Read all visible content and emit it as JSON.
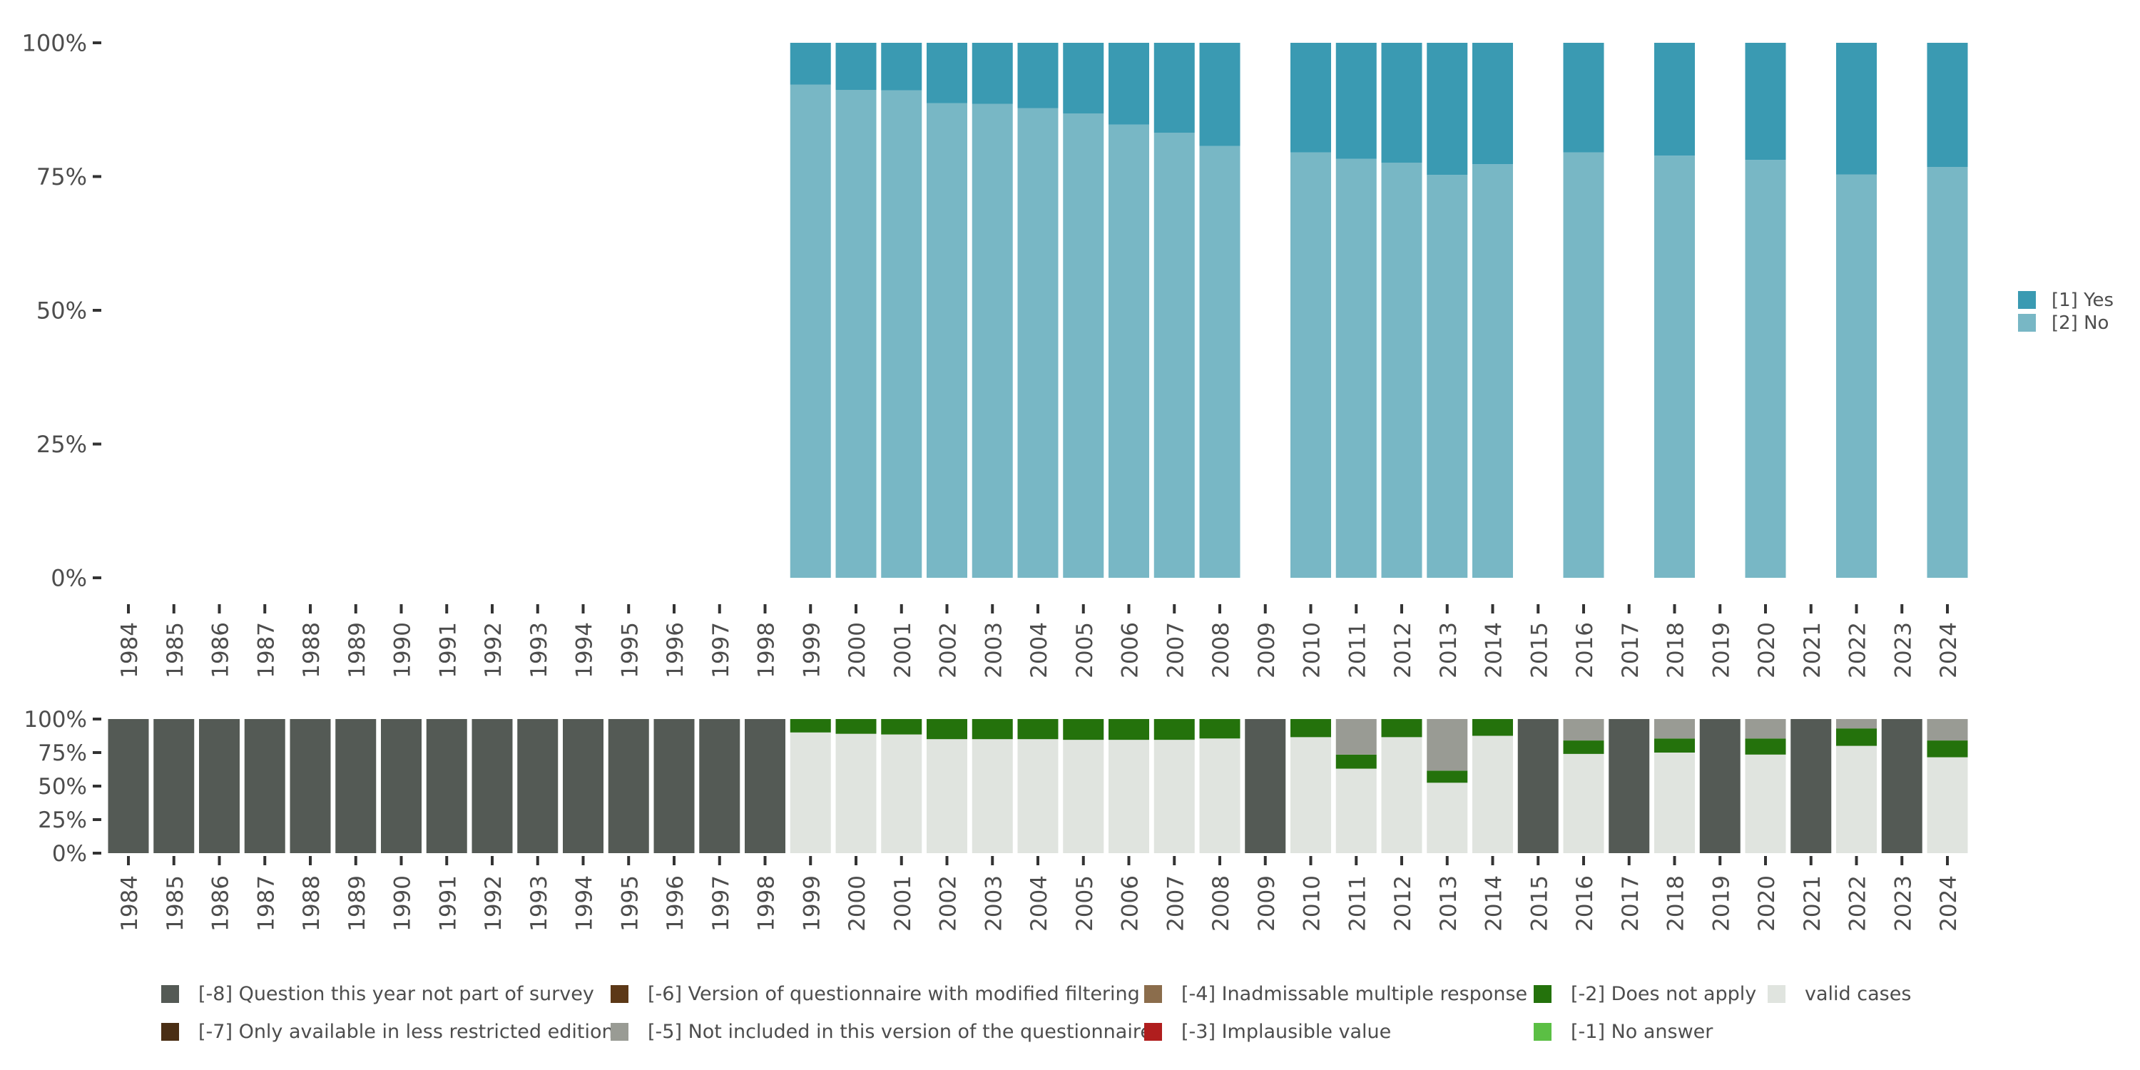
{
  "chart_data": [
    {
      "type": "bar",
      "stacked": true,
      "categories": [
        "1984",
        "1985",
        "1986",
        "1987",
        "1988",
        "1989",
        "1990",
        "1991",
        "1992",
        "1993",
        "1994",
        "1995",
        "1996",
        "1997",
        "1998",
        "1999",
        "2000",
        "2001",
        "2002",
        "2003",
        "2004",
        "2005",
        "2006",
        "2007",
        "2008",
        "2009",
        "2010",
        "2011",
        "2012",
        "2013",
        "2014",
        "2015",
        "2016",
        "2017",
        "2018",
        "2019",
        "2020",
        "2021",
        "2022",
        "2023",
        "2024"
      ],
      "y_ticks": [
        "0%",
        "25%",
        "50%",
        "75%",
        "100%"
      ],
      "ylim": [
        0,
        100
      ],
      "legend_position": "right",
      "series": [
        {
          "name": "[2] No",
          "color": "#78b7c5",
          "values": [
            null,
            null,
            null,
            null,
            null,
            null,
            null,
            null,
            null,
            null,
            null,
            null,
            null,
            null,
            null,
            92.2,
            91.2,
            91.1,
            88.7,
            88.6,
            87.8,
            86.8,
            84.7,
            83.2,
            80.7,
            null,
            79.5,
            78.3,
            77.6,
            75.3,
            77.3,
            null,
            79.5,
            null,
            78.9,
            null,
            78.1,
            null,
            75.4,
            null,
            76.8
          ]
        },
        {
          "name": "[1] Yes",
          "color": "#3a9ab2",
          "values": [
            null,
            null,
            null,
            null,
            null,
            null,
            null,
            null,
            null,
            null,
            null,
            null,
            null,
            null,
            null,
            7.8,
            8.8,
            8.9,
            11.3,
            11.4,
            12.2,
            13.2,
            15.3,
            16.8,
            19.3,
            null,
            20.5,
            21.7,
            22.4,
            24.7,
            22.7,
            null,
            20.5,
            null,
            21.1,
            null,
            21.9,
            null,
            24.6,
            null,
            23.2
          ]
        }
      ]
    },
    {
      "type": "bar",
      "stacked": true,
      "categories": [
        "1984",
        "1985",
        "1986",
        "1987",
        "1988",
        "1989",
        "1990",
        "1991",
        "1992",
        "1993",
        "1994",
        "1995",
        "1996",
        "1997",
        "1998",
        "1999",
        "2000",
        "2001",
        "2002",
        "2003",
        "2004",
        "2005",
        "2006",
        "2007",
        "2008",
        "2009",
        "2010",
        "2011",
        "2012",
        "2013",
        "2014",
        "2015",
        "2016",
        "2017",
        "2018",
        "2019",
        "2020",
        "2021",
        "2022",
        "2023",
        "2024"
      ],
      "y_ticks": [
        "0%",
        "25%",
        "50%",
        "75%",
        "100%"
      ],
      "ylim": [
        0,
        100
      ],
      "legend_position": "bottom",
      "series": [
        {
          "name": "valid cases",
          "color": "#e0e4df",
          "values": [
            0,
            0,
            0,
            0,
            0,
            0,
            0,
            0,
            0,
            0,
            0,
            0,
            0,
            0,
            0,
            90,
            89,
            88.5,
            85,
            85,
            85,
            84.5,
            84.5,
            84.5,
            85.5,
            0,
            86.5,
            63,
            86.5,
            52.5,
            87.5,
            0,
            74,
            0,
            75,
            0,
            73.5,
            0,
            80,
            0,
            71.5
          ]
        },
        {
          "name": "[-2] Does not apply",
          "color": "#24720c",
          "values": [
            0,
            0,
            0,
            0,
            0,
            0,
            0,
            0,
            0,
            0,
            0,
            0,
            0,
            0,
            0,
            10,
            11,
            11.5,
            15,
            15,
            15,
            15.5,
            15.5,
            15.5,
            14.5,
            0,
            13.5,
            10.5,
            13.5,
            9,
            12.5,
            0,
            10,
            0,
            10.5,
            0,
            12,
            0,
            13,
            0,
            12.5
          ]
        },
        {
          "name": "[-5] Not included in this version of the questionnaire",
          "color": "#999b94",
          "values": [
            0,
            0,
            0,
            0,
            0,
            0,
            0,
            0,
            0,
            0,
            0,
            0,
            0,
            0,
            0,
            0,
            0,
            0,
            0,
            0,
            0,
            0,
            0,
            0,
            0,
            0,
            0,
            26.5,
            0,
            38.5,
            0,
            0,
            16,
            0,
            14.5,
            0,
            14.5,
            0,
            7,
            0,
            16
          ]
        },
        {
          "name": "[-8] Question this year not part of survey",
          "color": "#545a55",
          "values": [
            100,
            100,
            100,
            100,
            100,
            100,
            100,
            100,
            100,
            100,
            100,
            100,
            100,
            100,
            100,
            0,
            0,
            0,
            0,
            0,
            0,
            0,
            0,
            0,
            0,
            100,
            0,
            0,
            0,
            0,
            0,
            100,
            0,
            100,
            0,
            100,
            0,
            100,
            0,
            100,
            0
          ]
        }
      ],
      "legend": [
        {
          "label": "[-8] Question this year not part of survey",
          "color": "#545a55"
        },
        {
          "label": "[-6] Version of questionnaire with modified filtering",
          "color": "#5c3817"
        },
        {
          "label": "[-4] Inadmissable multiple response",
          "color": "#8b6d4c"
        },
        {
          "label": "[-2] Does not apply",
          "color": "#24720c"
        },
        {
          "label": "valid cases",
          "color": "#e0e4df"
        },
        {
          "label": "[-7] Only available in less restricted edition",
          "color": "#4a2e14"
        },
        {
          "label": "[-5] Not included in this version of the questionnaire",
          "color": "#999b94"
        },
        {
          "label": "[-3] Implausible value",
          "color": "#b01e1e"
        },
        {
          "label": "[-1] No answer",
          "color": "#5bbf44"
        }
      ]
    }
  ]
}
